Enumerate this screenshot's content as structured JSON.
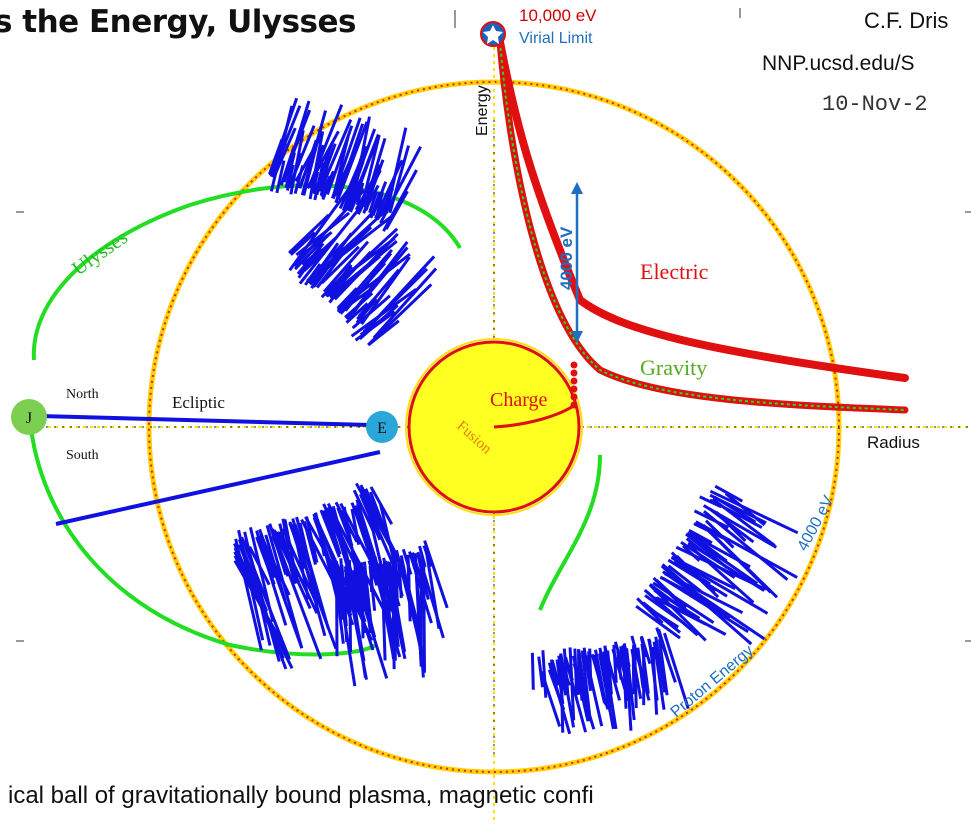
{
  "header": {
    "title": "s the Energy, Ulysses",
    "author": "C.F. Dris",
    "url": "NNP.ucsd.edu/S",
    "date": "10-Nov-2"
  },
  "peak": {
    "energy_label": "10,000 eV",
    "limit_label": "Virial Limit"
  },
  "axes": {
    "energy": "Energy",
    "radius": "Radius"
  },
  "curves": {
    "electric": "Electric",
    "gravity": "Gravity",
    "gap": "4000 eV"
  },
  "sun": {
    "charge": "Charge",
    "fusion": "Fusion"
  },
  "left_panel": {
    "orbit": "Ulysses",
    "planet_j": "J",
    "planet_e": "E",
    "north": "North",
    "south": "South",
    "ecliptic": "Ecliptic"
  },
  "ring": {
    "label": "4000 eV",
    "proton": "Proton Energy"
  },
  "footer": {
    "text": "i                     ical ball of gravitationally bound plasma, magnetic confi"
  },
  "colors": {
    "red": "#e01010",
    "green": "#22dd22",
    "blue": "#1010e0",
    "sun_fill": "#ffff22",
    "sun_edge": "#dd1111",
    "ring_dot": "#ffd000",
    "axis": "#ffe000",
    "accent_blue": "#1f6fc0"
  }
}
